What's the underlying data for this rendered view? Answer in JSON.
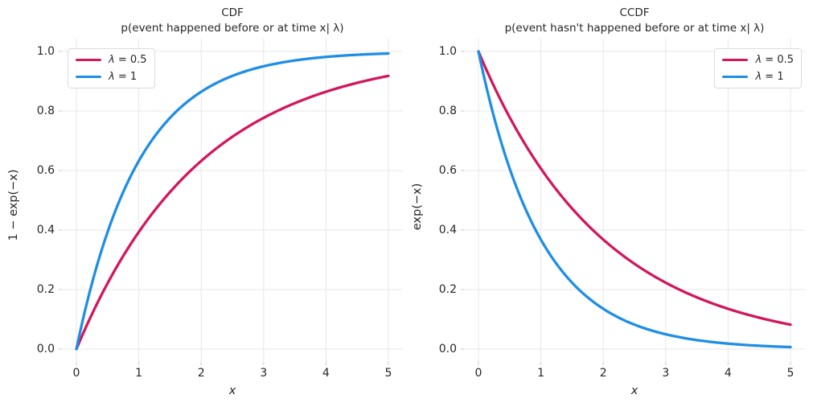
{
  "legend": {
    "entries": [
      {
        "symbol": "λ",
        "rest": " = 0.5"
      },
      {
        "symbol": "λ",
        "rest": " = 1"
      }
    ]
  },
  "chart_data": [
    {
      "type": "line",
      "kind": "cdf",
      "title": "CDF",
      "subtitle": "p(event happened before or at time x| λ)",
      "xlabel": "x",
      "ylabel": "1 − exp(−x)",
      "xlim": [
        0,
        5
      ],
      "ylim": [
        0,
        1
      ],
      "xticks": [
        "0",
        "1",
        "2",
        "3",
        "4",
        "5"
      ],
      "yticks": [
        "0.0",
        "0.2",
        "0.4",
        "0.6",
        "0.8",
        "1.0"
      ],
      "grid": true,
      "legend_position": "upper left",
      "series": [
        {
          "name": "λ = 0.5",
          "lambda": 0.5,
          "color": "#d2175c",
          "x": [
            0,
            0.5,
            1,
            1.5,
            2,
            2.5,
            3,
            3.5,
            4,
            4.5,
            5
          ],
          "y": [
            0,
            0.221,
            0.393,
            0.528,
            0.632,
            0.713,
            0.777,
            0.826,
            0.865,
            0.895,
            0.918
          ]
        },
        {
          "name": "λ = 1",
          "lambda": 1,
          "color": "#1f8ee5",
          "x": [
            0,
            0.5,
            1,
            1.5,
            2,
            2.5,
            3,
            3.5,
            4,
            4.5,
            5
          ],
          "y": [
            0,
            0.393,
            0.632,
            0.777,
            0.865,
            0.918,
            0.95,
            0.97,
            0.982,
            0.989,
            0.993
          ]
        }
      ]
    },
    {
      "type": "line",
      "kind": "ccdf",
      "title": "CCDF",
      "subtitle": "p(event hasn't happened before or at time x| λ)",
      "xlabel": "x",
      "ylabel": "exp(−x)",
      "xlim": [
        0,
        5
      ],
      "ylim": [
        0,
        1
      ],
      "xticks": [
        "0",
        "1",
        "2",
        "3",
        "4",
        "5"
      ],
      "yticks": [
        "0.0",
        "0.2",
        "0.4",
        "0.6",
        "0.8",
        "1.0"
      ],
      "grid": true,
      "legend_position": "upper right",
      "series": [
        {
          "name": "λ = 0.5",
          "lambda": 0.5,
          "color": "#d2175c",
          "x": [
            0,
            0.5,
            1,
            1.5,
            2,
            2.5,
            3,
            3.5,
            4,
            4.5,
            5
          ],
          "y": [
            1,
            0.779,
            0.607,
            0.472,
            0.368,
            0.287,
            0.223,
            0.174,
            0.135,
            0.105,
            0.082
          ]
        },
        {
          "name": "λ = 1",
          "lambda": 1,
          "color": "#1f8ee5",
          "x": [
            0,
            0.5,
            1,
            1.5,
            2,
            2.5,
            3,
            3.5,
            4,
            4.5,
            5
          ],
          "y": [
            1,
            0.607,
            0.368,
            0.223,
            0.135,
            0.082,
            0.05,
            0.03,
            0.018,
            0.011,
            0.007
          ]
        }
      ]
    }
  ]
}
